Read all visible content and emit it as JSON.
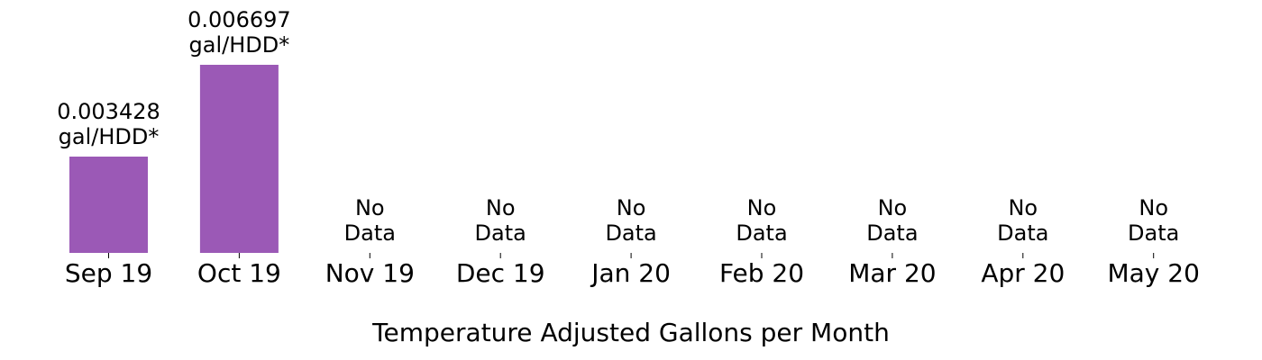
{
  "chart_data": {
    "type": "bar",
    "title": "",
    "xlabel": "Temperature Adjusted Gallons per Month",
    "ylabel": "",
    "categories": [
      "Sep 19",
      "Oct 19",
      "Nov 19",
      "Dec 19",
      "Jan 20",
      "Feb 20",
      "Mar 20",
      "Apr 20",
      "May 20"
    ],
    "values": [
      0.003428,
      0.006697,
      null,
      null,
      null,
      null,
      null,
      null,
      null
    ],
    "data_labels": [
      [
        "0.003428",
        "gal/HDD*"
      ],
      [
        "0.006697",
        "gal/HDD*"
      ],
      [
        "No",
        "Data"
      ],
      [
        "No",
        "Data"
      ],
      [
        "No",
        "Data"
      ],
      [
        "No",
        "Data"
      ],
      [
        "No",
        "Data"
      ],
      [
        "No",
        "Data"
      ],
      [
        "No",
        "Data"
      ]
    ],
    "ylim": [
      0,
      0.007
    ],
    "grid": false,
    "legend": false,
    "bar_color": "#9b59b6"
  }
}
